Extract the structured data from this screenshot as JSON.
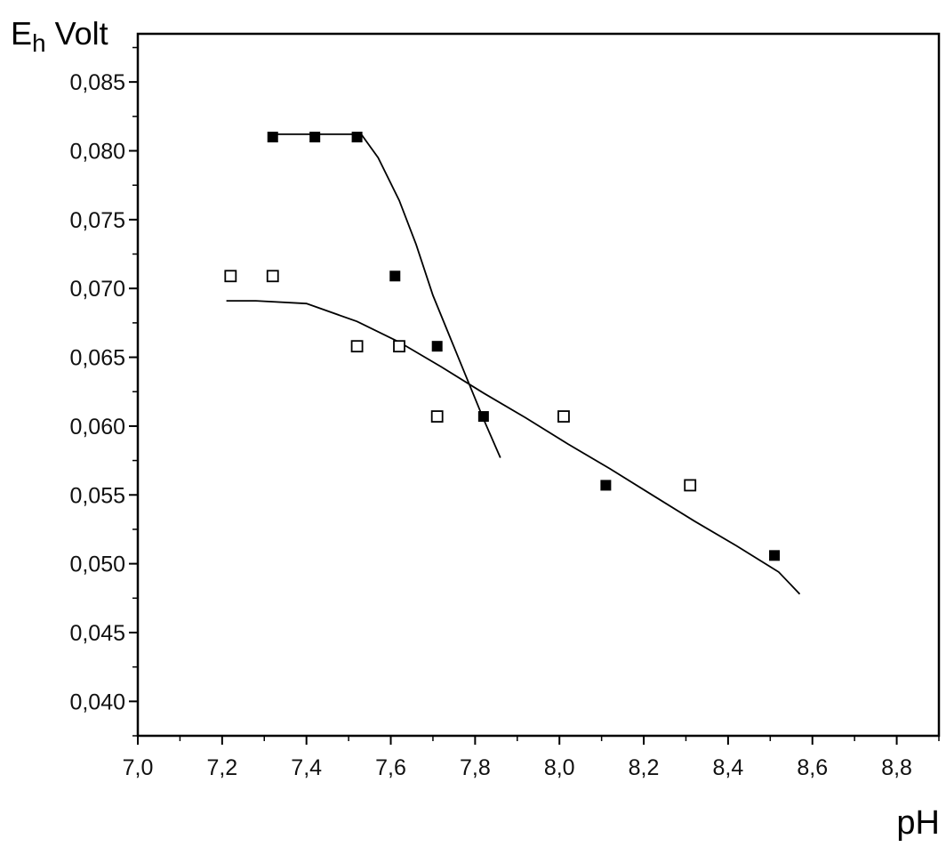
{
  "chart_data": {
    "type": "scatter",
    "title": "",
    "ylabel_main": "E",
    "ylabel_sub": "h",
    "ylabel_rest": " Volt",
    "xlabel": "pH",
    "xlim": [
      7.0,
      8.9
    ],
    "ylim": [
      0.0375,
      0.0885
    ],
    "xticks": [
      7.0,
      7.2,
      7.4,
      7.6,
      7.8,
      8.0,
      8.2,
      8.4,
      8.6,
      8.8
    ],
    "xtick_labels": [
      "7,0",
      "7,2",
      "7,4",
      "7,6",
      "7,8",
      "8,0",
      "8,2",
      "8,4",
      "8,6",
      "8,8"
    ],
    "yticks": [
      0.04,
      0.045,
      0.05,
      0.055,
      0.06,
      0.065,
      0.07,
      0.075,
      0.08,
      0.085
    ],
    "ytick_labels": [
      "0,040",
      "0,045",
      "0,050",
      "0,055",
      "0,060",
      "0,065",
      "0,070",
      "0,075",
      "0,080",
      "0,085"
    ],
    "grid": false,
    "legend": "none",
    "series": [
      {
        "marker": "filled-square",
        "color": "#000000",
        "points": [
          [
            7.32,
            0.081
          ],
          [
            7.42,
            0.081
          ],
          [
            7.52,
            0.081
          ],
          [
            7.61,
            0.0709
          ],
          [
            7.71,
            0.0658
          ],
          [
            7.82,
            0.0607
          ],
          [
            8.11,
            0.0557
          ],
          [
            8.51,
            0.0506
          ]
        ]
      },
      {
        "marker": "open-square",
        "color": "#000000",
        "points": [
          [
            7.22,
            0.0709
          ],
          [
            7.32,
            0.0709
          ],
          [
            7.52,
            0.0658
          ],
          [
            7.62,
            0.0658
          ],
          [
            7.71,
            0.0607
          ],
          [
            8.01,
            0.0607
          ],
          [
            8.31,
            0.0557
          ]
        ]
      }
    ],
    "lines": [
      {
        "style": "solid",
        "points": [
          [
            7.32,
            0.0812
          ],
          [
            7.53,
            0.0812
          ],
          [
            7.57,
            0.0795
          ],
          [
            7.62,
            0.0764
          ],
          [
            7.66,
            0.0732
          ],
          [
            7.7,
            0.0695
          ],
          [
            7.74,
            0.0665
          ],
          [
            7.78,
            0.0635
          ],
          [
            7.82,
            0.0605
          ],
          [
            7.86,
            0.0577
          ]
        ]
      },
      {
        "style": "solid",
        "points": [
          [
            7.21,
            0.0691
          ],
          [
            7.28,
            0.0691
          ],
          [
            7.4,
            0.0689
          ],
          [
            7.52,
            0.0676
          ],
          [
            7.62,
            0.0661
          ],
          [
            7.72,
            0.0643
          ],
          [
            7.82,
            0.0624
          ],
          [
            7.92,
            0.0606
          ],
          [
            8.02,
            0.0587
          ],
          [
            8.12,
            0.0569
          ],
          [
            8.22,
            0.055
          ],
          [
            8.32,
            0.0531
          ],
          [
            8.42,
            0.0513
          ],
          [
            8.52,
            0.0494
          ],
          [
            8.57,
            0.0478
          ]
        ]
      }
    ]
  }
}
